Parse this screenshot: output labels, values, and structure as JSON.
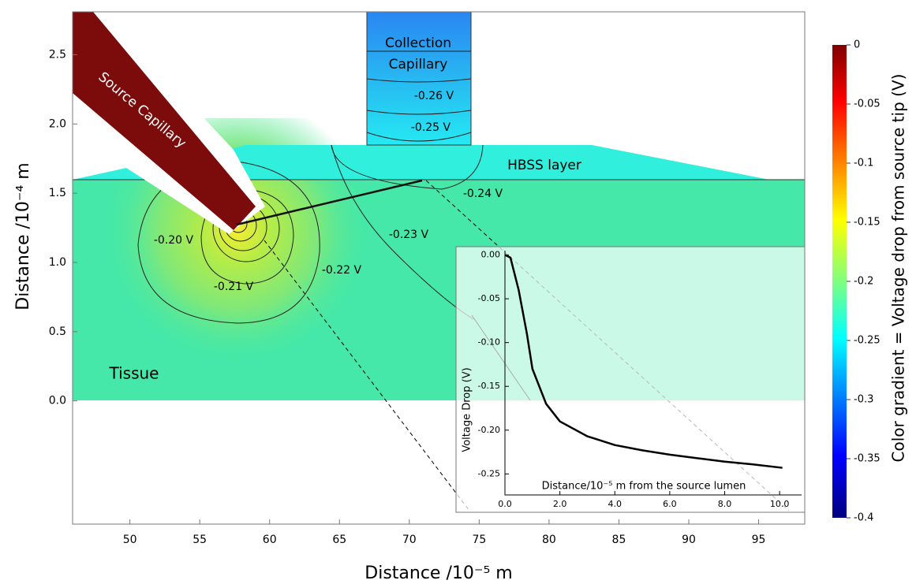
{
  "chart_data": [
    {
      "type": "contour",
      "x_label": "Distance /10⁻⁵ m",
      "y_label": "Distance /10⁻⁴ m",
      "xlim": [
        45.9,
        98.3
      ],
      "xticks": [
        50,
        55,
        60,
        65,
        70,
        75,
        80,
        85,
        90,
        95
      ],
      "ylim": [
        -0.89,
        2.81
      ],
      "yticks": [
        {
          "value": 0,
          "label": "0.0"
        },
        0.5,
        {
          "value": 1,
          "label": "1.0"
        },
        1.5,
        {
          "value": 2,
          "label": "2.0"
        },
        2.5
      ],
      "region_labels": [
        "Source Capillary",
        "Collection",
        "Capillary",
        "HBSS layer",
        "Tissue"
      ],
      "annotations": [
        "-0.26 V",
        "-0.25 V",
        "-0.24 V",
        "-0.23 V",
        "-0.22 V",
        "-0.21 V",
        "-0.20 V"
      ],
      "colorbar": {
        "title": "Color gradient = Voltage drop from source tip (V)",
        "lim": [
          -0.4,
          0
        ],
        "ticks": [
          0,
          -0.05,
          -0.1,
          -0.15,
          -0.2,
          -0.25,
          -0.3,
          -0.35,
          -0.4
        ]
      }
    },
    {
      "type": "line",
      "x_label": "Distance/10⁻⁵ m from the source lumen",
      "y_label": "Voltage Drop (V)",
      "xlim": [
        0,
        10.8
      ],
      "xticks": [
        {
          "value": 0,
          "label": "0.0"
        },
        {
          "value": 2,
          "label": "2.0"
        },
        {
          "value": 4,
          "label": "4.0"
        },
        {
          "value": 6,
          "label": "6.0"
        },
        {
          "value": 8,
          "label": "8.0"
        },
        {
          "value": 10,
          "label": "10.0"
        }
      ],
      "ylim": [
        -0.274,
        0.005
      ],
      "yticks": [
        {
          "value": 0,
          "label": "0.00"
        },
        -0.05,
        {
          "value": -0.1,
          "label": "-0.10"
        },
        -0.15,
        {
          "value": -0.2,
          "label": "-0.20"
        },
        -0.25
      ],
      "series": [
        {
          "color": "#000000",
          "x": [
            0,
            0.2,
            0.5,
            0.8,
            1.0,
            1.5,
            2.0,
            3.0,
            4.0,
            5.0,
            6.0,
            7.0,
            8.0,
            9.0,
            10.1
          ],
          "values": [
            0,
            -0.003,
            -0.04,
            -0.09,
            -0.13,
            -0.17,
            -0.19,
            -0.207,
            -0.217,
            -0.223,
            -0.228,
            -0.232,
            -0.236,
            -0.239,
            -0.243
          ]
        }
      ]
    }
  ]
}
